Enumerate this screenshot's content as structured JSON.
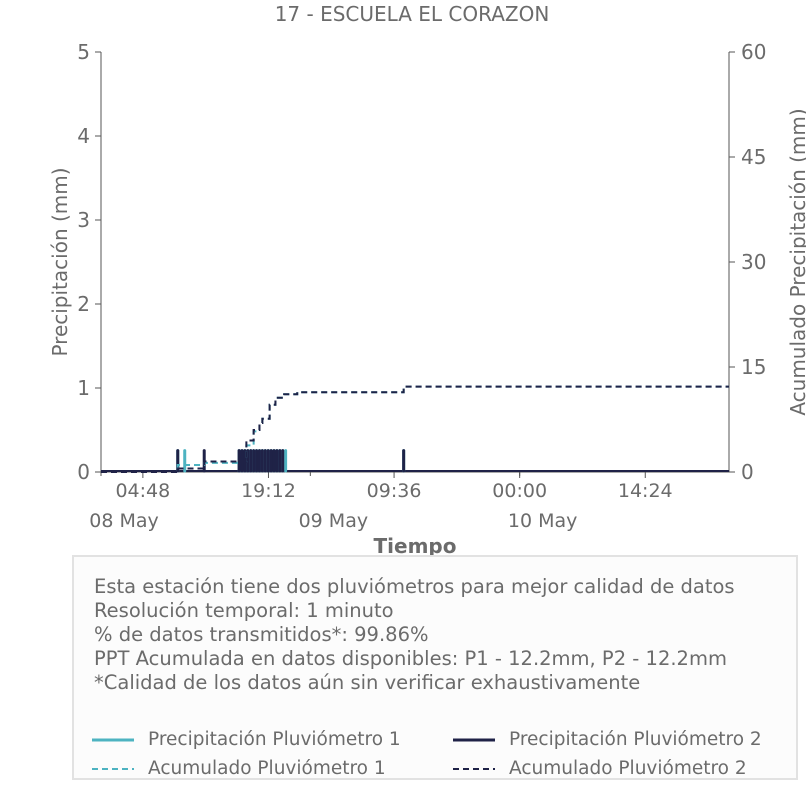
{
  "chart_data": {
    "type": "line",
    "title": "17 - ESCUELA EL CORAZON",
    "xlabel": "Tiempo",
    "ylabel": "Precipitación (mm)",
    "y2label": "Acumulado Precipitación (mm)",
    "ylim": [
      0,
      5
    ],
    "y2lim": [
      0,
      60
    ],
    "yticks": [
      "0",
      "1",
      "2",
      "3",
      "4",
      "5"
    ],
    "y2ticks": [
      "0",
      "15",
      "30",
      "45",
      "60"
    ],
    "xrange": [
      "2024-05-08 00:00",
      "2024-05-11 00:00"
    ],
    "xticks": [
      {
        "t": "2024-05-08 04:48",
        "label": "04:48",
        "day_label": "08 May"
      },
      {
        "t": "2024-05-08 19:12",
        "label": "19:12",
        "day_label": "09 May"
      },
      {
        "t": "2024-05-09 09:36",
        "label": "09:36",
        "day_label": ""
      },
      {
        "t": "2024-05-10 00:00",
        "label": "00:00",
        "day_label": "10 May"
      },
      {
        "t": "2024-05-10 14:24",
        "label": "14:24",
        "day_label": ""
      }
    ],
    "series": [
      {
        "name": "Precipitación Pluviómetro 1",
        "color": "#4db3c1",
        "style": "solid",
        "axis": "left",
        "x": [
          "2024-05-08 08:48",
          "2024-05-08 09:36",
          "2024-05-08 15:50",
          "2024-05-08 16:10",
          "2024-05-08 16:30",
          "2024-05-08 16:50",
          "2024-05-08 17:10",
          "2024-05-08 17:30",
          "2024-05-08 17:50",
          "2024-05-08 18:10",
          "2024-05-08 18:30",
          "2024-05-08 18:50",
          "2024-05-08 19:10",
          "2024-05-08 19:30",
          "2024-05-08 19:50",
          "2024-05-08 20:10",
          "2024-05-08 20:30",
          "2024-05-08 20:50",
          "2024-05-08 21:10",
          "2024-05-09 10:42"
        ],
        "y": [
          0.254,
          0.254,
          0.254,
          0.254,
          0.254,
          0.254,
          0.254,
          0.254,
          0.254,
          0.254,
          0.254,
          0.254,
          0.254,
          0.254,
          0.254,
          0.254,
          0.254,
          0.254,
          0.254,
          0.254
        ]
      },
      {
        "name": "Precipitación Pluviómetro 2",
        "color": "#1f2247",
        "style": "solid",
        "axis": "left",
        "x": [
          "2024-05-08 08:48",
          "2024-05-08 11:50",
          "2024-05-08 15:50",
          "2024-05-08 16:10",
          "2024-05-08 16:30",
          "2024-05-08 16:50",
          "2024-05-08 17:10",
          "2024-05-08 17:30",
          "2024-05-08 17:50",
          "2024-05-08 18:10",
          "2024-05-08 18:30",
          "2024-05-08 18:50",
          "2024-05-08 19:10",
          "2024-05-08 19:30",
          "2024-05-08 19:50",
          "2024-05-08 20:10",
          "2024-05-08 20:30",
          "2024-05-08 20:50",
          "2024-05-09 10:42"
        ],
        "y": [
          0.254,
          0.254,
          0.254,
          0.254,
          0.254,
          0.254,
          0.254,
          0.254,
          0.254,
          0.254,
          0.254,
          0.254,
          0.254,
          0.254,
          0.254,
          0.254,
          0.254,
          0.254,
          0.254
        ]
      },
      {
        "name": "Acumulado Pluviómetro 1",
        "color": "#4db3c1",
        "style": "dashed",
        "axis": "right",
        "x": [
          "2024-05-08 00:00",
          "2024-05-08 08:40",
          "2024-05-08 08:48",
          "2024-05-08 11:50",
          "2024-05-08 15:50",
          "2024-05-08 16:40",
          "2024-05-08 17:30",
          "2024-05-08 18:10",
          "2024-05-08 18:30",
          "2024-05-08 19:20",
          "2024-05-08 20:00",
          "2024-05-08 21:00",
          "2024-05-08 22:30",
          "2024-05-09 10:40",
          "2024-05-09 10:42",
          "2024-05-11 00:00"
        ],
        "y": [
          0,
          0,
          1.0,
          1.3,
          1.5,
          3.8,
          5.8,
          7.0,
          7.6,
          9.6,
          10.6,
          11.1,
          11.4,
          11.4,
          12.2,
          12.2
        ]
      },
      {
        "name": "Acumulado Pluviómetro 2",
        "color": "#1f2247",
        "style": "dashed",
        "axis": "right",
        "x": [
          "2024-05-08 00:00",
          "2024-05-08 08:40",
          "2024-05-08 08:48",
          "2024-05-08 11:50",
          "2024-05-08 15:50",
          "2024-05-08 16:40",
          "2024-05-08 17:30",
          "2024-05-08 18:10",
          "2024-05-08 18:30",
          "2024-05-08 19:20",
          "2024-05-08 20:00",
          "2024-05-08 21:00",
          "2024-05-08 22:30",
          "2024-05-09 10:40",
          "2024-05-09 10:42",
          "2024-05-11 00:00"
        ],
        "y": [
          0,
          0,
          0.5,
          1.5,
          1.5,
          4.5,
          6.0,
          7.0,
          7.6,
          9.6,
          10.6,
          11.1,
          11.4,
          11.4,
          12.2,
          12.2
        ]
      }
    ]
  },
  "info": {
    "lines": [
      "Esta estación tiene dos pluviómetros para mejor calidad de datos",
      "Resolución temporal: 1 minuto",
      "% de datos transmitidos*: 99.86%",
      "PPT Acumulada en datos disponibles: P1 - 12.2mm, P2 - 12.2mm",
      "*Calidad de los datos aún sin verificar exhaustivamente"
    ]
  },
  "legend": [
    {
      "label": "Precipitación Pluviómetro 1",
      "color": "#4db3c1",
      "style": "solid"
    },
    {
      "label": "Precipitación Pluviómetro 2",
      "color": "#1f2247",
      "style": "solid"
    },
    {
      "label": "Acumulado Pluviómetro 1",
      "color": "#4db3c1",
      "style": "dashed"
    },
    {
      "label": "Acumulado Pluviómetro 2",
      "color": "#1f2247",
      "style": "dashed"
    }
  ]
}
